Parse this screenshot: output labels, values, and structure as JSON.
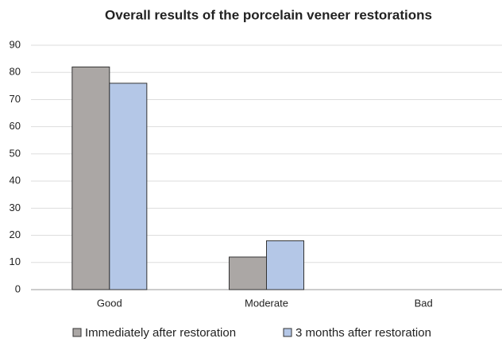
{
  "chart_data": {
    "type": "bar",
    "title": "Overall results of the porcelain veneer restorations",
    "categories": [
      "Good",
      "Moderate",
      "Bad"
    ],
    "series": [
      {
        "name": "Immediately after restoration",
        "color": "#aba7a5",
        "values": [
          82,
          12,
          0
        ]
      },
      {
        "name": "3 months after restoration",
        "color": "#b4c7e7",
        "values": [
          76,
          18,
          0
        ]
      }
    ],
    "ylim": [
      0,
      90
    ],
    "yticks": [
      0,
      10,
      20,
      30,
      40,
      50,
      60,
      70,
      80,
      90
    ],
    "grid": true,
    "legend": "bottom"
  }
}
